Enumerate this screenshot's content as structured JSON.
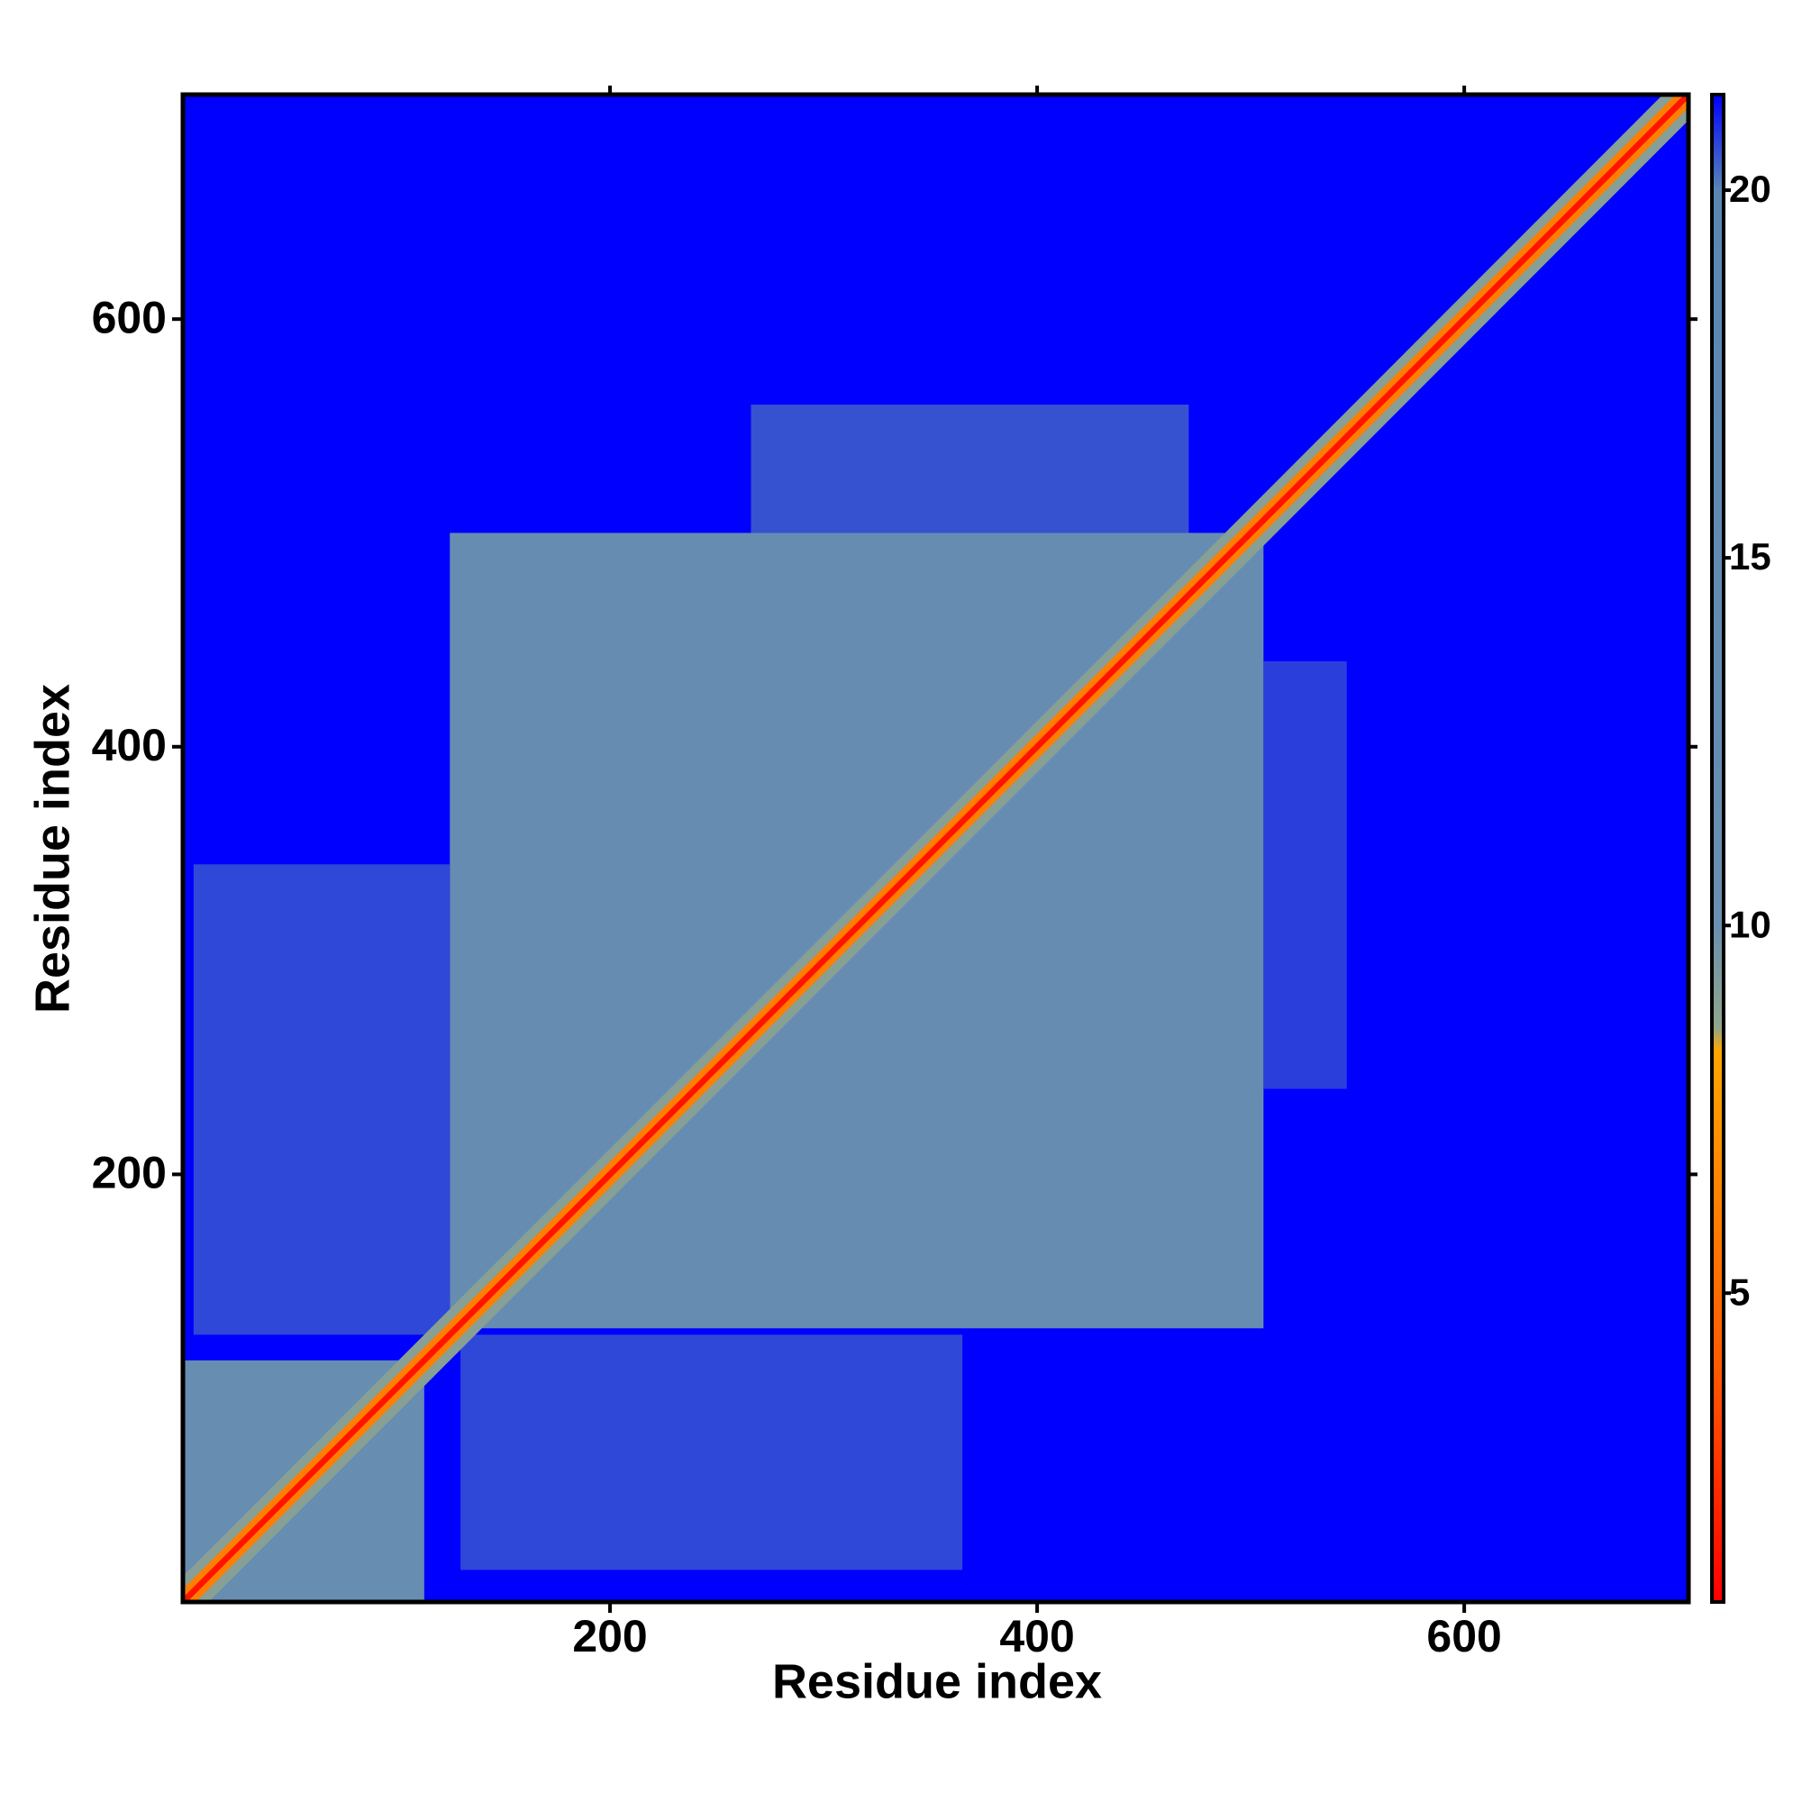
{
  "chart_data": {
    "type": "heatmap",
    "xlabel": "Residue index",
    "ylabel": "Residue index",
    "xlim": [
      0,
      705
    ],
    "ylim": [
      0,
      705
    ],
    "xticks": [
      200,
      400,
      600
    ],
    "yticks": [
      200,
      400,
      600
    ],
    "background_value": 21.3,
    "colorbar": {
      "lim": [
        0.8,
        21.3
      ],
      "ticks": [
        5,
        10,
        15,
        20
      ],
      "colorscale": [
        [
          0.8,
          "#ff0000"
        ],
        [
          4,
          "#ff5a00"
        ],
        [
          8.3,
          "#ffa500"
        ],
        [
          8.6,
          "#93a68a"
        ],
        [
          10,
          "#6a8fb0"
        ],
        [
          20,
          "#5a86b4"
        ],
        [
          21.3,
          "#0000ff"
        ]
      ]
    },
    "blocks": [
      {
        "x": [
          0,
          113
        ],
        "y": [
          0,
          113
        ],
        "value": 12
      },
      {
        "x": [
          125,
          506
        ],
        "y": [
          128,
          500
        ],
        "value": 12.5
      },
      {
        "x": [
          266,
          471
        ],
        "y": [
          500,
          560
        ],
        "value": 20.5
      },
      {
        "x": [
          5,
          125
        ],
        "y": [
          125,
          345
        ],
        "value": 20.6
      },
      {
        "x": [
          130,
          365
        ],
        "y": [
          15,
          125
        ],
        "value": 20.6
      },
      {
        "x": [
          506,
          545
        ],
        "y": [
          240,
          440
        ],
        "value": 20.7
      }
    ],
    "diagonal": [
      {
        "halfwidth": 12,
        "value": 9
      },
      {
        "halfwidth": 6,
        "value": 6
      },
      {
        "halfwidth": 2,
        "value": 1.5
      }
    ]
  }
}
